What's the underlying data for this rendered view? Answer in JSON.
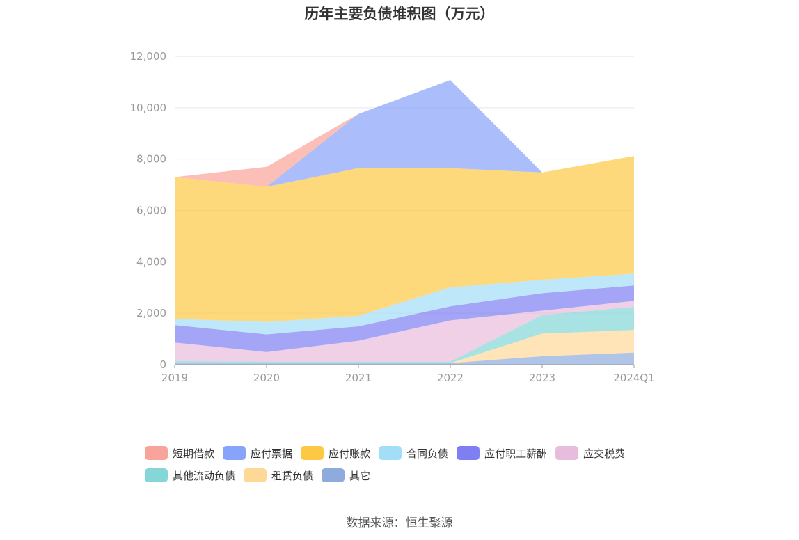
{
  "chart_data": {
    "type": "area",
    "stacked": true,
    "title": "历年主要负债堆积图（万元）",
    "categories": [
      "2019",
      "2020",
      "2021",
      "2022",
      "2023",
      "2024Q1"
    ],
    "ylim": [
      0,
      12000
    ],
    "yticks": [
      0,
      2000,
      4000,
      6000,
      8000,
      10000,
      12000
    ],
    "ytick_labels": [
      "0",
      "2,000",
      "4,000",
      "6,000",
      "8,000",
      "10,000",
      "12,000"
    ],
    "grid": true,
    "legend_position": "bottom",
    "series": [
      {
        "name": "其它",
        "color": "#8fabdd",
        "values": [
          80,
          60,
          60,
          60,
          330,
          470
        ]
      },
      {
        "name": "租赁负债",
        "color": "#fdd897",
        "values": [
          0,
          0,
          0,
          0,
          880,
          880
        ]
      },
      {
        "name": "其他流动负债",
        "color": "#85d6d6",
        "values": [
          60,
          60,
          60,
          60,
          720,
          900
        ]
      },
      {
        "name": "应交税费",
        "color": "#e8bcdc",
        "values": [
          720,
          370,
          810,
          1600,
          170,
          230
        ]
      },
      {
        "name": "应付职工薪酬",
        "color": "#7e7ff2",
        "values": [
          680,
          690,
          560,
          550,
          680,
          600
        ]
      },
      {
        "name": "合同负债",
        "color": "#a3def8",
        "values": [
          240,
          480,
          410,
          740,
          520,
          460
        ]
      },
      {
        "name": "应付账款",
        "color": "#fdc944",
        "values": [
          5520,
          5260,
          5750,
          4640,
          4180,
          4580
        ]
      },
      {
        "name": "应付票据",
        "color": "#87a3fa",
        "values": [
          0,
          0,
          2110,
          3430,
          0,
          0
        ]
      },
      {
        "name": "短期借款",
        "color": "#f9a49a",
        "values": [
          0,
          780,
          0,
          0,
          0,
          0
        ]
      }
    ]
  },
  "legend_order": [
    "短期借款",
    "应付票据",
    "应付账款",
    "合同负债",
    "应付职工薪酬",
    "应交税费",
    "其他流动负债",
    "租赁负债",
    "其它"
  ],
  "source": "数据来源：恒生聚源"
}
